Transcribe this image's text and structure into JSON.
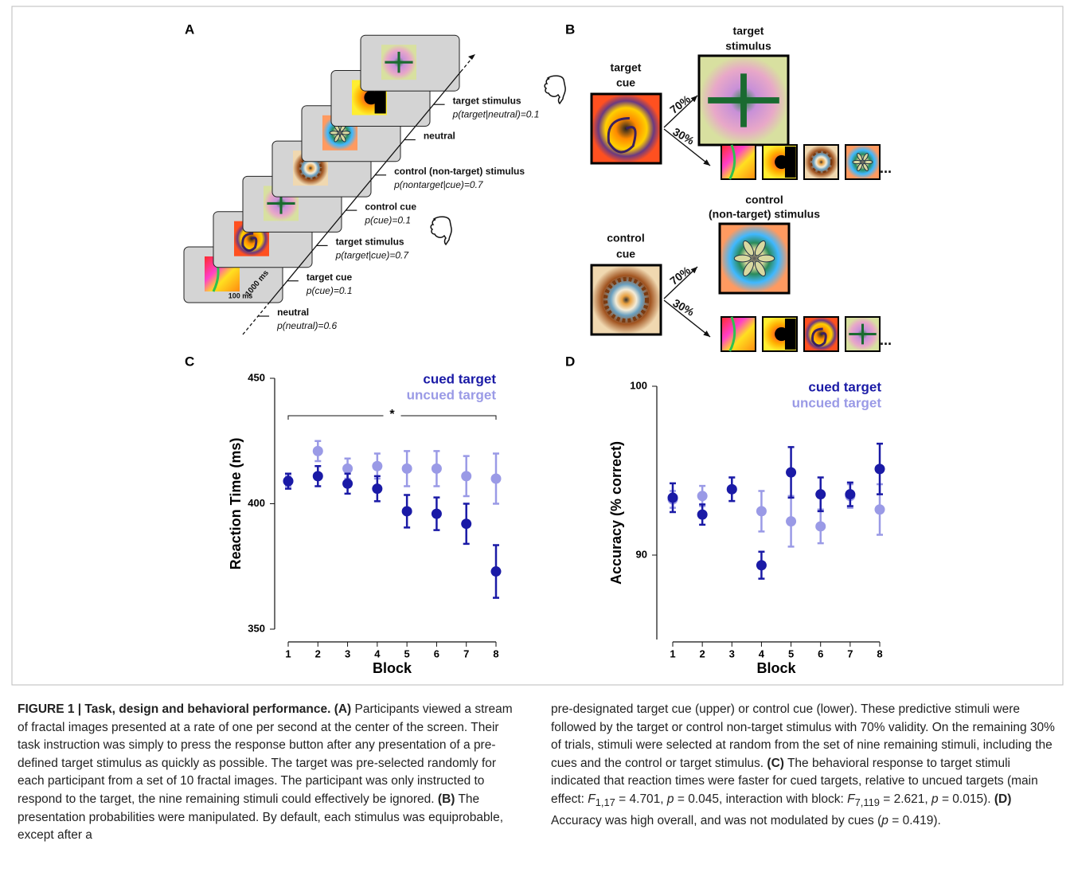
{
  "panel_labels": [
    "A",
    "B",
    "C",
    "D"
  ],
  "panel_a": {
    "frame_duration": "100 ms",
    "interval": "1000 ms",
    "events": [
      {
        "label": "neutral",
        "probability": "p(neutral)=0.6"
      },
      {
        "label": "target cue",
        "probability": "p(cue)=0.1"
      },
      {
        "label": "target stimulus",
        "probability": "p(target|cue)=0.7"
      },
      {
        "label": "control cue",
        "probability": "p(cue)=0.1"
      },
      {
        "label": "control (non-target) stimulus",
        "probability": "p(nontarget|cue)=0.7"
      },
      {
        "label": "neutral"
      },
      {
        "label": "target stimulus",
        "probability": "p(target|neutral)=0.1"
      }
    ]
  },
  "panel_b": {
    "target_cue": [
      "target",
      "cue"
    ],
    "target_stimulus": [
      "target",
      "stimulus"
    ],
    "control_cue": [
      "control",
      "cue"
    ],
    "control_stimulus": [
      "control",
      "(non-target) stimulus"
    ],
    "valid": "70%",
    "invalid": "30%",
    "more": "..."
  },
  "chart_data": [
    {
      "type": "scatter",
      "ylabel": "Reaction Time (ms)",
      "xlabel": "Block",
      "x": [
        1,
        2,
        3,
        4,
        5,
        6,
        7,
        8
      ],
      "xlim": [
        0.5,
        8.5
      ],
      "xticks": [
        1,
        2,
        3,
        4,
        5,
        6,
        7,
        8
      ],
      "ylim": [
        350,
        450
      ],
      "yticks": [
        350,
        400,
        450
      ],
      "series": [
        {
          "name": "cued target",
          "color": "#1a1aa6",
          "values": [
            409,
            411,
            408,
            406,
            397,
            396,
            392,
            373
          ],
          "errors": [
            3,
            4,
            4,
            5,
            6.5,
            6.5,
            8,
            10.5
          ]
        },
        {
          "name": "uncued target",
          "color": "#9a9ae6",
          "values": [
            409,
            421,
            414,
            415,
            414,
            414,
            411,
            410
          ],
          "errors": [
            2,
            4,
            4,
            5,
            7,
            7,
            8,
            10
          ]
        }
      ],
      "bracket": {
        "from": 1,
        "to": 8,
        "label": "*"
      }
    },
    {
      "type": "scatter",
      "ylabel": "Accuracy (% correct)",
      "xlabel": "Block",
      "x": [
        1,
        2,
        3,
        4,
        5,
        6,
        7,
        8
      ],
      "xlim": [
        0.5,
        8.5
      ],
      "xticks": [
        1,
        2,
        3,
        4,
        5,
        6,
        7,
        8
      ],
      "ylim": [
        85,
        100
      ],
      "yticks": [
        90,
        100
      ],
      "series": [
        {
          "name": "cued target",
          "color": "#1a1aa6",
          "values": [
            93.4,
            92.4,
            93.9,
            89.4,
            94.9,
            93.6,
            93.6,
            95.1
          ],
          "errors": [
            0.85,
            0.6,
            0.7,
            0.8,
            1.5,
            1.0,
            0.7,
            1.5
          ]
        },
        {
          "name": "uncued target",
          "color": "#9a9ae6",
          "values": [
            93.3,
            93.5,
            93.9,
            92.6,
            92.0,
            91.7,
            93.5,
            92.7
          ],
          "errors": [
            0.5,
            0.6,
            0.7,
            1.2,
            1.5,
            1.0,
            0.7,
            1.5
          ]
        }
      ]
    }
  ],
  "caption": {
    "left": [
      "FIGURE 1 | Task, design and behavioral performance.",
      "(A)",
      "Participants viewed a stream of fractal images presented at a rate of one per second at the center of the screen. Their task instruction was simply to press the response button after any presentation of a pre-defined target stimulus as quickly as possible. The target was pre-selected randomly for each participant from a set of 10 fractal images. The participant was only instructed to respond to the target, the nine remaining stimuli could effectively be ignored.",
      "(B)",
      "The presentation probabilities were manipulated. By default, each stimulus was equiprobable, except after a"
    ],
    "right": [
      "pre-designated target cue (upper) or control cue (lower). These predictive stimuli were followed by the target or control non-target stimulus with 70% validity. On the remaining 30% of trials, stimuli were selected at random from the set of nine remaining stimuli, including the cues and the control or target stimulus.",
      "(C)",
      "The behavioral response to target stimuli indicated that reaction times were faster for cued targets, relative to uncued targets (main effect:",
      "F",
      "1,17",
      "= 4.701,",
      "p",
      "= 0.045, interaction with block:",
      "F",
      "7,119",
      "= 2.621,",
      "p",
      "= 0.015).",
      "(D)",
      "Accuracy was high overall, and was not modulated by cues (",
      "p",
      "= 0.419)."
    ]
  }
}
